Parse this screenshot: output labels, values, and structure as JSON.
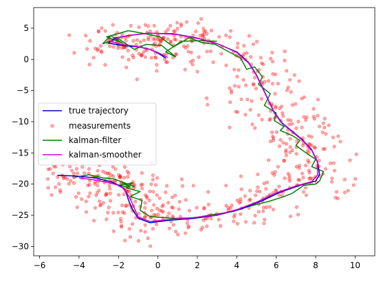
{
  "chart_data": {
    "type": "scatter",
    "title": "",
    "xlabel": "",
    "ylabel": "",
    "xlim": [
      -6.3,
      11.0
    ],
    "ylim": [
      -31.5,
      8.3
    ],
    "grid": false,
    "legend_position": "center-left",
    "xticks": [
      -6,
      -4,
      -2,
      0,
      2,
      4,
      6,
      8,
      10
    ],
    "yticks": [
      5,
      0,
      -5,
      -10,
      -15,
      -20,
      -25,
      -30
    ],
    "xtick_labels": [
      "−6",
      "−4",
      "−2",
      "0",
      "2",
      "4",
      "6",
      "8",
      "10"
    ],
    "ytick_labels": [
      "5",
      "0",
      "−5",
      "−10",
      "−15",
      "−20",
      "−25",
      "−30"
    ],
    "series": [
      {
        "name": "true trajectory",
        "kind": "line",
        "color": "#0000cc",
        "x": [
          0.4,
          0.0,
          -0.4,
          -1.0,
          -1.8,
          -2.5,
          -2.2,
          -1.5,
          -0.5,
          0.8,
          2.0,
          3.0,
          4.0,
          4.6,
          5.0,
          5.3,
          5.6,
          5.9,
          6.3,
          6.8,
          7.3,
          7.8,
          8.1,
          8.2,
          8.0,
          7.2,
          6.2,
          5.2,
          4.2,
          3.0,
          1.8,
          0.6,
          -0.4,
          -1.0,
          -1.3,
          -1.5,
          -1.6,
          -1.7,
          -1.9,
          -2.4,
          -3.2,
          -4.2,
          -5.1
        ],
        "y": [
          0.2,
          1.0,
          1.6,
          2.0,
          2.2,
          2.6,
          3.4,
          3.8,
          4.2,
          4.1,
          3.4,
          2.5,
          1.2,
          -0.5,
          -2.5,
          -4.5,
          -6.5,
          -8.5,
          -10.2,
          -11.5,
          -12.8,
          -14.5,
          -16.5,
          -18.5,
          -19.5,
          -20.2,
          -21.3,
          -22.8,
          -24.0,
          -25.0,
          -25.5,
          -25.8,
          -26.2,
          -25.5,
          -24.0,
          -22.5,
          -21.5,
          -20.8,
          -20.3,
          -19.6,
          -19.0,
          -18.7,
          -18.6
        ]
      },
      {
        "name": "kalman-filter",
        "kind": "line",
        "color": "#008000",
        "x": [
          3.0,
          2.2,
          1.2,
          0.4,
          0.9,
          0.2,
          -0.6,
          -1.2,
          -2.0,
          -2.8,
          -2.4,
          -1.8,
          -2.6,
          -1.5,
          -0.8,
          0.1,
          0.8,
          1.6,
          2.2,
          2.9,
          3.6,
          4.2,
          4.5,
          4.9,
          5.3,
          5.1,
          5.7,
          5.4,
          6.0,
          5.9,
          6.4,
          6.2,
          6.8,
          7.2,
          7.0,
          7.6,
          8.0,
          7.8,
          8.4,
          8.2,
          8.0,
          7.4,
          6.8,
          6.4,
          5.6,
          4.6,
          3.8,
          2.6,
          1.8,
          0.8,
          -0.4,
          -0.9,
          -0.8,
          -1.4,
          -0.9,
          -1.6,
          -1.3,
          -2.0,
          -1.4,
          -1.8,
          -1.2,
          -2.2,
          -2.8,
          -3.5,
          -4.2
        ],
        "y": [
          2.9,
          3.0,
          2.9,
          1.2,
          0.4,
          2.2,
          2.4,
          1.6,
          3.3,
          2.5,
          3.8,
          2.6,
          3.6,
          4.6,
          4.2,
          3.6,
          2.0,
          3.5,
          2.7,
          2.4,
          1.2,
          0.2,
          -1.6,
          -1.2,
          -2.8,
          -4.0,
          -5.5,
          -7.4,
          -8.6,
          -9.8,
          -10.8,
          -11.4,
          -12.2,
          -13.0,
          -13.8,
          -15.2,
          -16.0,
          -17.2,
          -18.0,
          -19.5,
          -20.0,
          -20.2,
          -21.5,
          -22.0,
          -22.8,
          -23.6,
          -24.4,
          -25.0,
          -25.4,
          -25.5,
          -25.2,
          -24.2,
          -22.6,
          -22.0,
          -21.2,
          -20.6,
          -19.8,
          -20.2,
          -20.5,
          -19.8,
          -20.4,
          -19.2,
          -19.0,
          -18.5,
          -18.9
        ]
      },
      {
        "name": "kalman-smoother",
        "kind": "line",
        "color": "#cc00cc",
        "x": [
          0.5,
          0.0,
          -0.5,
          -1.1,
          -1.9,
          -2.4,
          -2.0,
          -1.3,
          -0.4,
          0.9,
          2.1,
          3.1,
          4.0,
          4.6,
          5.0,
          5.3,
          5.6,
          5.9,
          6.3,
          6.8,
          7.3,
          7.8,
          8.1,
          8.1,
          7.8,
          7.0,
          6.0,
          5.0,
          4.0,
          2.9,
          1.7,
          0.5,
          -0.4,
          -1.0,
          -1.2,
          -1.4,
          -1.6,
          -1.8,
          -2.1,
          -2.6,
          -3.3,
          -4.0
        ],
        "y": [
          0.3,
          1.1,
          1.7,
          2.1,
          2.4,
          2.9,
          3.5,
          3.9,
          4.2,
          4.0,
          3.3,
          2.4,
          1.1,
          -0.6,
          -2.6,
          -4.6,
          -6.6,
          -8.6,
          -10.3,
          -11.6,
          -12.9,
          -14.6,
          -16.6,
          -18.5,
          -19.6,
          -20.3,
          -21.4,
          -22.9,
          -24.1,
          -25.0,
          -25.4,
          -25.7,
          -26.0,
          -25.3,
          -23.8,
          -22.4,
          -21.3,
          -20.6,
          -20.1,
          -19.7,
          -19.3,
          -19.0
        ]
      },
      {
        "name": "measurements",
        "kind": "scatter",
        "color": "#ff0000",
        "alpha": 0.35,
        "generated_from_trajectory": true,
        "count": 700,
        "spread": 1.3
      }
    ]
  }
}
